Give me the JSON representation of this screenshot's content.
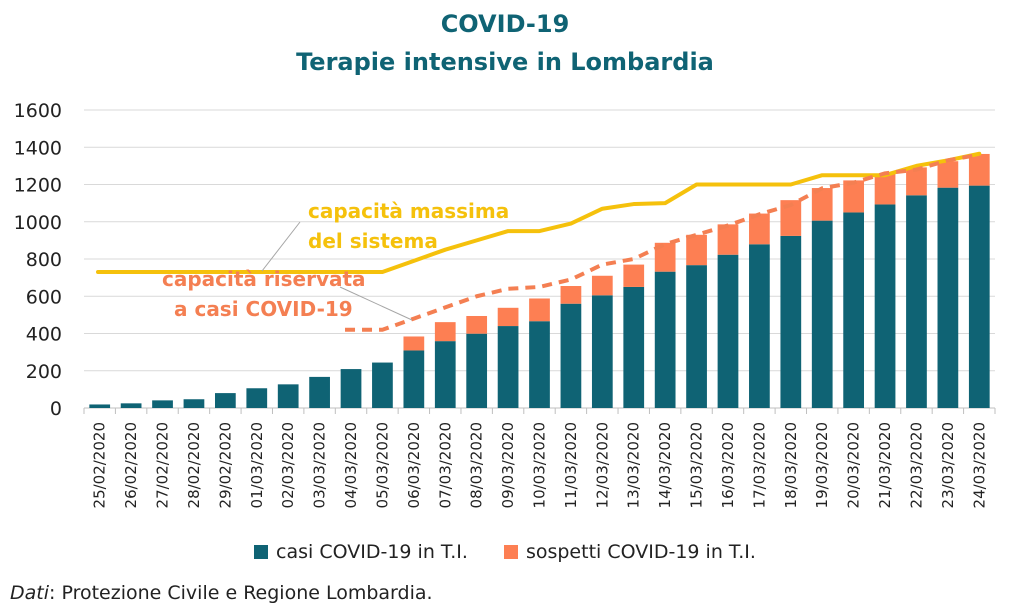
{
  "title_line1": "COVID-19",
  "title_line2": "Terapie intensive in Lombardia",
  "source_label": "Dati",
  "source_text": ": Protezione Civile e Regione Lombardia.",
  "colors": {
    "casi": "#0f6374",
    "sospetti": "#fd7f53",
    "capacita_massima": "#f5c10c",
    "capacita_riservata": "#f47f52",
    "title": "#0f6374"
  },
  "chart_data": {
    "type": "bar",
    "stacked": true,
    "categories": [
      "25/02/2020",
      "26/02/2020",
      "27/02/2020",
      "28/02/2020",
      "29/02/2020",
      "01/03/2020",
      "02/03/2020",
      "03/03/2020",
      "04/03/2020",
      "05/03/2020",
      "06/03/2020",
      "07/03/2020",
      "08/03/2020",
      "09/03/2020",
      "10/03/2020",
      "11/03/2020",
      "12/03/2020",
      "13/03/2020",
      "14/03/2020",
      "15/03/2020",
      "16/03/2020",
      "17/03/2020",
      "18/03/2020",
      "19/03/2020",
      "20/03/2020",
      "21/03/2020",
      "22/03/2020",
      "23/03/2020",
      "24/03/2020"
    ],
    "series": [
      {
        "name": "casi COVID-19 in T.I.",
        "values": [
          19,
          25,
          41,
          47,
          80,
          106,
          127,
          167,
          209,
          244,
          309,
          359,
          399,
          440,
          466,
          560,
          605,
          650,
          732,
          767,
          823,
          879,
          924,
          1006,
          1050,
          1093,
          1142,
          1183,
          1194
        ]
      },
      {
        "name": "sospetti COVID-19 in T.I.",
        "values": [
          0,
          0,
          0,
          0,
          0,
          0,
          0,
          0,
          0,
          0,
          75,
          102,
          95,
          98,
          122,
          95,
          105,
          120,
          155,
          163,
          163,
          165,
          192,
          175,
          172,
          165,
          150,
          142,
          170
        ]
      }
    ],
    "lines": [
      {
        "name": "capacità massima del sistema",
        "style": "solid",
        "values": [
          730,
          730,
          730,
          730,
          730,
          730,
          730,
          730,
          730,
          730,
          790,
          850,
          900,
          950,
          950,
          990,
          1070,
          1095,
          1100,
          1200,
          1200,
          1200,
          1200,
          1250,
          1250,
          1250,
          1300,
          1330,
          1365
        ]
      },
      {
        "name": "capacità riservata a casi COVID-19",
        "style": "dashed",
        "values": [
          null,
          null,
          null,
          null,
          null,
          null,
          null,
          null,
          420,
          420,
          480,
          540,
          600,
          640,
          650,
          690,
          770,
          800,
          880,
          930,
          980,
          1040,
          1090,
          1180,
          1210,
          1260,
          1280,
          1330,
          1360
        ]
      }
    ],
    "annotations": [
      {
        "lines": [
          "capacità massima",
          "del sistema"
        ],
        "target": "capacità massima del sistema"
      },
      {
        "lines": [
          "capacità riservata",
          "a casi COVID-19"
        ],
        "target": "capacità riservata a casi COVID-19"
      }
    ],
    "yticks": [
      0,
      200,
      400,
      600,
      800,
      1000,
      1200,
      1400,
      1600
    ],
    "ylim": [
      0,
      1600
    ],
    "grid": true,
    "legend_position": "bottom"
  }
}
